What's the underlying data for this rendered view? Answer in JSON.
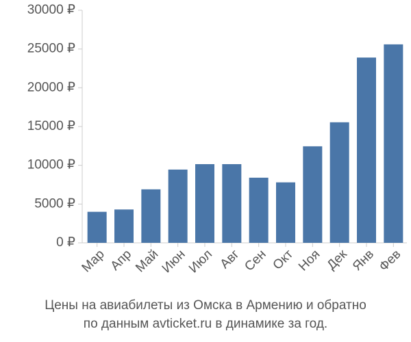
{
  "chart_data": {
    "type": "bar",
    "title": "Цены на авиабилеты из Омска в Армению и обратно",
    "subtitle": "по данным avticket.ru в динамике за год.",
    "categories": [
      "Мар",
      "Апр",
      "Май",
      "Июн",
      "Июл",
      "Авг",
      "Сен",
      "Окт",
      "Ноя",
      "Дек",
      "Янв",
      "Фев"
    ],
    "values": [
      4000,
      4300,
      6900,
      9450,
      10150,
      10150,
      8400,
      7800,
      12450,
      15550,
      23900,
      25600
    ],
    "color": "#4a76a8",
    "ylim": [
      0,
      30000
    ],
    "yticks": [
      {
        "value": 0,
        "label": "0 ₽"
      },
      {
        "value": 5000,
        "label": "5000 ₽"
      },
      {
        "value": 10000,
        "label": "10000 ₽"
      },
      {
        "value": 15000,
        "label": "15000 ₽"
      },
      {
        "value": 20000,
        "label": "20000 ₽"
      },
      {
        "value": 25000,
        "label": "25000 ₽"
      },
      {
        "value": 30000,
        "label": "30000 ₽"
      }
    ],
    "grid": false
  }
}
